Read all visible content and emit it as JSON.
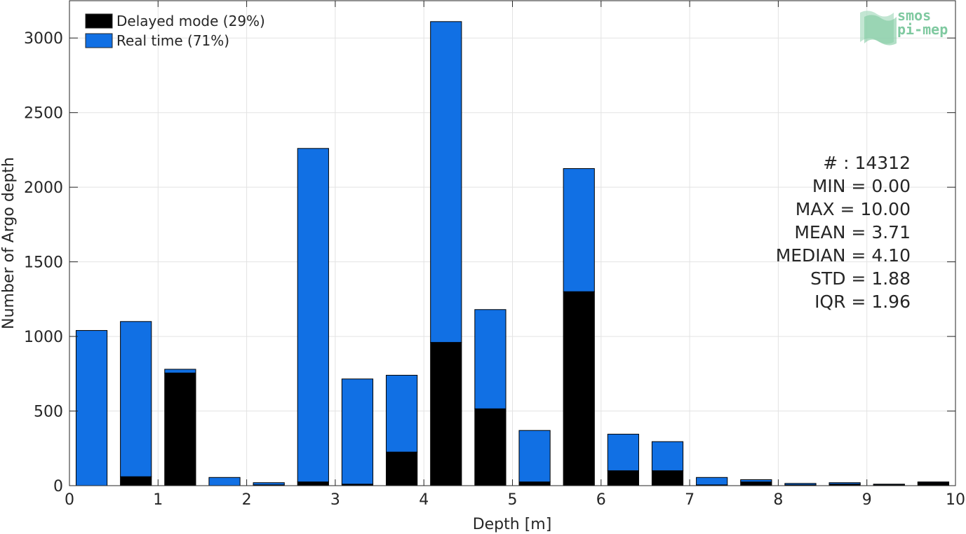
{
  "chart_data": {
    "type": "bar",
    "stacked": true,
    "xlabel": "Depth [m]",
    "ylabel": "Number of Argo depth",
    "xlim": [
      0,
      10
    ],
    "ylim": [
      0,
      3250
    ],
    "xticks": [
      0,
      1,
      2,
      3,
      4,
      5,
      6,
      7,
      8,
      9,
      10
    ],
    "yticks": [
      0,
      500,
      1000,
      1500,
      2000,
      2500,
      3000
    ],
    "grid": true,
    "legend_position": "top-left",
    "bin_width": 0.5,
    "bin_centers": [
      0.25,
      0.75,
      1.25,
      1.75,
      2.25,
      2.75,
      3.25,
      3.75,
      4.25,
      4.75,
      5.25,
      5.75,
      6.25,
      6.75,
      7.25,
      7.75,
      8.25,
      8.75,
      9.25,
      9.75
    ],
    "series": [
      {
        "name": "Delayed mode (29%)",
        "color": "#000000",
        "values": [
          0,
          60,
          755,
          0,
          5,
          25,
          10,
          225,
          960,
          515,
          25,
          1300,
          100,
          100,
          5,
          25,
          5,
          10,
          5,
          20
        ]
      },
      {
        "name": "Real time (71%)",
        "color": "#1170e4",
        "values": [
          1040,
          1040,
          25,
          55,
          15,
          2235,
          705,
          515,
          2150,
          665,
          345,
          825,
          245,
          195,
          50,
          15,
          10,
          10,
          5,
          5
        ]
      }
    ],
    "stats": [
      "# : 14312",
      "MIN = 0.00",
      "MAX =  10.00",
      "MEAN = 3.71",
      "MEDIAN = 4.10",
      "STD = 1.88",
      "IQR = 1.96"
    ]
  },
  "logo": {
    "line1": "smos",
    "line2": "pi-mep",
    "color": "#7fc9a0"
  }
}
